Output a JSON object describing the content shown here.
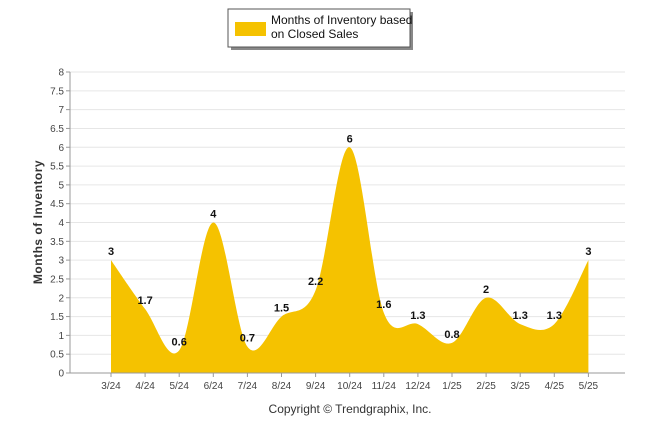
{
  "chart_data": {
    "type": "area",
    "categories": [
      "3/24",
      "4/24",
      "5/24",
      "6/24",
      "7/24",
      "8/24",
      "9/24",
      "10/24",
      "11/24",
      "12/24",
      "1/25",
      "2/25",
      "3/25",
      "4/25",
      "5/25"
    ],
    "series": [
      {
        "name": "Months of Inventory based on Closed Sales",
        "values": [
          3,
          1.7,
          0.6,
          4,
          0.7,
          1.5,
          2.2,
          6,
          1.6,
          1.3,
          0.8,
          2,
          1.3,
          1.3,
          3
        ],
        "color": "#F5C200"
      }
    ],
    "legend_lines": [
      "Months of Inventory based",
      "on Closed Sales"
    ],
    "ylabel": "Months of Inventory",
    "xlabel": "",
    "ylim": [
      0,
      8
    ],
    "yticks": [
      "0",
      "0.5",
      "1",
      "1.5",
      "2",
      "2.5",
      "3",
      "3.5",
      "4",
      "4.5",
      "5",
      "5.5",
      "6",
      "6.5",
      "7",
      "7.5",
      "8"
    ],
    "grid": true,
    "legend_position": "top-center"
  },
  "footer": {
    "copyright": "Copyright © Trendgraphix, Inc."
  }
}
